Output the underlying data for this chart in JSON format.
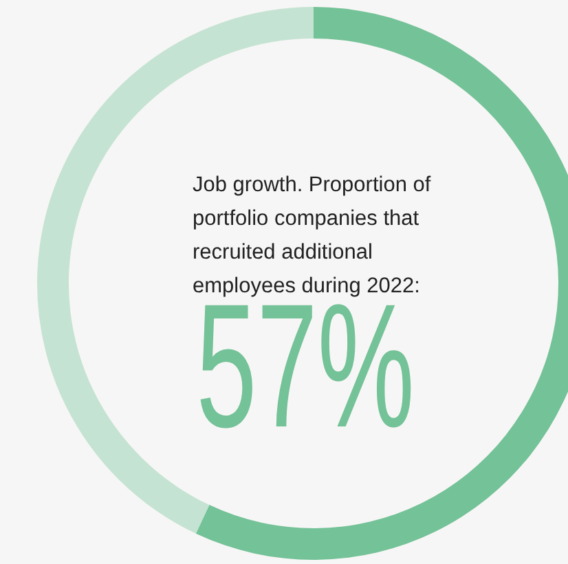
{
  "chart_data": {
    "type": "donut",
    "title": "Job growth. Proportion of portfolio companies that recruited additional employees during 2022:",
    "categories": [
      null,
      null
    ],
    "values": [
      57,
      43
    ],
    "colors": [
      "#74c297",
      "#c5e3d2"
    ],
    "value_labels": [
      "57%",
      null
    ],
    "legend": false
  }
}
